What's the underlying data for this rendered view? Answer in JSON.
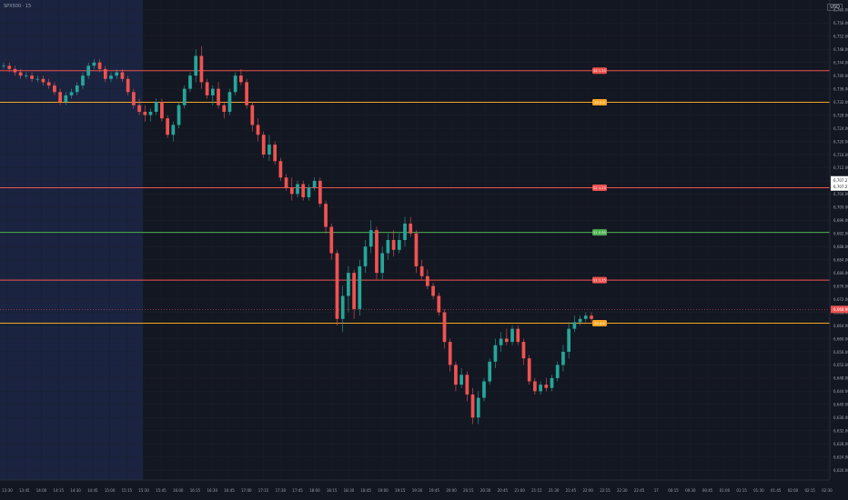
{
  "header": {
    "symbol": "SPX500 · 15",
    "currency": "USD"
  },
  "colors": {
    "background": "#131722",
    "session_shade": "#1a2340",
    "up": "#26a69a",
    "down": "#ef5350",
    "red_level": "#ef5350",
    "orange_level": "#f5a623",
    "green_level": "#4caf50"
  },
  "chart_data": {
    "type": "candlestick",
    "price_axis": {
      "ylim": [
        6617,
        6763
      ],
      "ticks": [
        "6,760.00",
        "6,756.00",
        "6,752.00",
        "6,748.00",
        "6,744.00",
        "6,740.00",
        "6,736.00",
        "6,732.00",
        "6,728.00",
        "6,724.00",
        "6,720.00",
        "6,716.00",
        "6,712.00",
        "6,708.00",
        "6,704.00",
        "6,700.00",
        "6,696.00",
        "6,692.00",
        "6,688.00",
        "6,684.00",
        "6,680.00",
        "6,676.00",
        "6,672.00",
        "6,668.00",
        "6,664.00",
        "6,660.00",
        "6,656.00",
        "6,652.00",
        "6,648.00",
        "6,644.00",
        "6,640.00",
        "6,636.00",
        "6,632.00",
        "6,628.00",
        "6,624.00",
        "6,620.00"
      ],
      "current_price_labels": [
        "6,707.21",
        "6,707.21"
      ],
      "last_price_label": "6,668.90"
    },
    "time_axis": {
      "ticks": [
        "13:30",
        "13:45",
        "14:00",
        "14:15",
        "14:30",
        "14:45",
        "15:00",
        "15:15",
        "15:30",
        "15:45",
        "16:00",
        "16:15",
        "16:30",
        "16:45",
        "17:00",
        "17:15",
        "17:30",
        "17:45",
        "18:00",
        "18:15",
        "18:30",
        "18:45",
        "19:00",
        "19:15",
        "19:30",
        "19:45",
        "20:00",
        "20:15",
        "20:30",
        "20:45",
        "21:00",
        "21:15",
        "21:30",
        "21:45",
        "22:00",
        "22:15",
        "22:30",
        "22:45",
        "17",
        "00:15",
        "00:30",
        "00:45",
        "01:00",
        "01:15",
        "01:30",
        "01:45",
        "02:00",
        "02:15",
        "02:30"
      ]
    },
    "levels": [
      {
        "price": 6741.5,
        "color": "red",
        "label": "S4 1.25"
      },
      {
        "price": 6731.9,
        "color": "orange",
        "label": "S3 0.6"
      },
      {
        "price": 6705.9,
        "color": "red",
        "label": "S2 1.25"
      },
      {
        "price": 6692.3,
        "color": "green",
        "label": "S1 0.95"
      },
      {
        "price": 6677.8,
        "color": "red",
        "label": "S1 1.25"
      },
      {
        "price": 6664.7,
        "color": "orange",
        "label": "S0 0.6"
      }
    ],
    "candles": [
      {
        "o": 6743,
        "h": 6744,
        "l": 6742,
        "c": 6743
      },
      {
        "o": 6743,
        "h": 6744,
        "l": 6741,
        "c": 6742
      },
      {
        "o": 6742,
        "h": 6743,
        "l": 6740,
        "c": 6741
      },
      {
        "o": 6741,
        "h": 6742,
        "l": 6739,
        "c": 6740
      },
      {
        "o": 6740,
        "h": 6741,
        "l": 6739,
        "c": 6740
      },
      {
        "o": 6740,
        "h": 6741,
        "l": 6738,
        "c": 6739
      },
      {
        "o": 6739,
        "h": 6740,
        "l": 6738,
        "c": 6739
      },
      {
        "o": 6739,
        "h": 6740,
        "l": 6737,
        "c": 6738
      },
      {
        "o": 6738,
        "h": 6739,
        "l": 6736,
        "c": 6737
      },
      {
        "o": 6737,
        "h": 6738,
        "l": 6734,
        "c": 6735
      },
      {
        "o": 6735,
        "h": 6736,
        "l": 6731,
        "c": 6732
      },
      {
        "o": 6732,
        "h": 6735,
        "l": 6731,
        "c": 6734
      },
      {
        "o": 6734,
        "h": 6736,
        "l": 6733,
        "c": 6735
      },
      {
        "o": 6735,
        "h": 6738,
        "l": 6734,
        "c": 6737
      },
      {
        "o": 6737,
        "h": 6741,
        "l": 6736,
        "c": 6740
      },
      {
        "o": 6740,
        "h": 6744,
        "l": 6739,
        "c": 6743
      },
      {
        "o": 6743,
        "h": 6745,
        "l": 6742,
        "c": 6744
      },
      {
        "o": 6744,
        "h": 6745,
        "l": 6741,
        "c": 6742
      },
      {
        "o": 6742,
        "h": 6743,
        "l": 6738,
        "c": 6739
      },
      {
        "o": 6739,
        "h": 6741,
        "l": 6738,
        "c": 6740
      },
      {
        "o": 6740,
        "h": 6742,
        "l": 6739,
        "c": 6741
      },
      {
        "o": 6741,
        "h": 6742,
        "l": 6738,
        "c": 6739
      },
      {
        "o": 6739,
        "h": 6740,
        "l": 6734,
        "c": 6735
      },
      {
        "o": 6735,
        "h": 6736,
        "l": 6730,
        "c": 6731
      },
      {
        "o": 6731,
        "h": 6733,
        "l": 6728,
        "c": 6729
      },
      {
        "o": 6729,
        "h": 6731,
        "l": 6726,
        "c": 6728
      },
      {
        "o": 6728,
        "h": 6730,
        "l": 6726,
        "c": 6729
      },
      {
        "o": 6729,
        "h": 6733,
        "l": 6728,
        "c": 6732
      },
      {
        "o": 6732,
        "h": 6733,
        "l": 6726,
        "c": 6727
      },
      {
        "o": 6727,
        "h": 6728,
        "l": 6721,
        "c": 6722
      },
      {
        "o": 6722,
        "h": 6726,
        "l": 6720,
        "c": 6725
      },
      {
        "o": 6725,
        "h": 6732,
        "l": 6724,
        "c": 6731
      },
      {
        "o": 6731,
        "h": 6737,
        "l": 6730,
        "c": 6736
      },
      {
        "o": 6736,
        "h": 6741,
        "l": 6735,
        "c": 6740
      },
      {
        "o": 6740,
        "h": 6748,
        "l": 6738,
        "c": 6746
      },
      {
        "o": 6746,
        "h": 6749,
        "l": 6736,
        "c": 6738
      },
      {
        "o": 6738,
        "h": 6739,
        "l": 6733,
        "c": 6734
      },
      {
        "o": 6734,
        "h": 6737,
        "l": 6731,
        "c": 6736
      },
      {
        "o": 6736,
        "h": 6738,
        "l": 6730,
        "c": 6731
      },
      {
        "o": 6731,
        "h": 6732,
        "l": 6727,
        "c": 6729
      },
      {
        "o": 6729,
        "h": 6736,
        "l": 6728,
        "c": 6735
      },
      {
        "o": 6735,
        "h": 6741,
        "l": 6734,
        "c": 6740
      },
      {
        "o": 6740,
        "h": 6742,
        "l": 6737,
        "c": 6738
      },
      {
        "o": 6738,
        "h": 6739,
        "l": 6730,
        "c": 6731
      },
      {
        "o": 6731,
        "h": 6732,
        "l": 6723,
        "c": 6725
      },
      {
        "o": 6725,
        "h": 6727,
        "l": 6720,
        "c": 6722
      },
      {
        "o": 6722,
        "h": 6723,
        "l": 6715,
        "c": 6716
      },
      {
        "o": 6716,
        "h": 6722,
        "l": 6714,
        "c": 6719
      },
      {
        "o": 6719,
        "h": 6720,
        "l": 6713,
        "c": 6714
      },
      {
        "o": 6714,
        "h": 6715,
        "l": 6708,
        "c": 6709
      },
      {
        "o": 6709,
        "h": 6710,
        "l": 6705,
        "c": 6706
      },
      {
        "o": 6706,
        "h": 6709,
        "l": 6702,
        "c": 6704
      },
      {
        "o": 6704,
        "h": 6708,
        "l": 6703,
        "c": 6707
      },
      {
        "o": 6707,
        "h": 6708,
        "l": 6702,
        "c": 6703
      },
      {
        "o": 6703,
        "h": 6707,
        "l": 6702,
        "c": 6706
      },
      {
        "o": 6706,
        "h": 6709,
        "l": 6705,
        "c": 6708
      },
      {
        "o": 6708,
        "h": 6709,
        "l": 6700,
        "c": 6701
      },
      {
        "o": 6701,
        "h": 6702,
        "l": 6692,
        "c": 6694
      },
      {
        "o": 6694,
        "h": 6695,
        "l": 6684,
        "c": 6686
      },
      {
        "o": 6686,
        "h": 6687,
        "l": 6664,
        "c": 6666
      },
      {
        "o": 6666,
        "h": 6676,
        "l": 6662,
        "c": 6673
      },
      {
        "o": 6673,
        "h": 6682,
        "l": 6668,
        "c": 6680
      },
      {
        "o": 6680,
        "h": 6681,
        "l": 6666,
        "c": 6669
      },
      {
        "o": 6669,
        "h": 6684,
        "l": 6667,
        "c": 6682
      },
      {
        "o": 6682,
        "h": 6690,
        "l": 6680,
        "c": 6688
      },
      {
        "o": 6688,
        "h": 6696,
        "l": 6686,
        "c": 6693
      },
      {
        "o": 6693,
        "h": 6694,
        "l": 6678,
        "c": 6680
      },
      {
        "o": 6680,
        "h": 6688,
        "l": 6678,
        "c": 6686
      },
      {
        "o": 6686,
        "h": 6692,
        "l": 6684,
        "c": 6690
      },
      {
        "o": 6690,
        "h": 6693,
        "l": 6685,
        "c": 6687
      },
      {
        "o": 6687,
        "h": 6692,
        "l": 6686,
        "c": 6690
      },
      {
        "o": 6690,
        "h": 6697,
        "l": 6688,
        "c": 6695
      },
      {
        "o": 6695,
        "h": 6697,
        "l": 6691,
        "c": 6692
      },
      {
        "o": 6692,
        "h": 6693,
        "l": 6680,
        "c": 6682
      },
      {
        "o": 6682,
        "h": 6684,
        "l": 6678,
        "c": 6679
      },
      {
        "o": 6679,
        "h": 6681,
        "l": 6675,
        "c": 6676
      },
      {
        "o": 6676,
        "h": 6677,
        "l": 6672,
        "c": 6673
      },
      {
        "o": 6673,
        "h": 6674,
        "l": 6667,
        "c": 6668
      },
      {
        "o": 6668,
        "h": 6669,
        "l": 6657,
        "c": 6659
      },
      {
        "o": 6659,
        "h": 6660,
        "l": 6650,
        "c": 6652
      },
      {
        "o": 6652,
        "h": 6653,
        "l": 6644,
        "c": 6646
      },
      {
        "o": 6646,
        "h": 6651,
        "l": 6645,
        "c": 6649
      },
      {
        "o": 6649,
        "h": 6650,
        "l": 6641,
        "c": 6643
      },
      {
        "o": 6643,
        "h": 6645,
        "l": 6634,
        "c": 6636
      },
      {
        "o": 6636,
        "h": 6644,
        "l": 6634,
        "c": 6642
      },
      {
        "o": 6642,
        "h": 6648,
        "l": 6641,
        "c": 6647
      },
      {
        "o": 6647,
        "h": 6654,
        "l": 6646,
        "c": 6653
      },
      {
        "o": 6653,
        "h": 6660,
        "l": 6651,
        "c": 6658
      },
      {
        "o": 6658,
        "h": 6662,
        "l": 6656,
        "c": 6660
      },
      {
        "o": 6660,
        "h": 6663,
        "l": 6658,
        "c": 6659
      },
      {
        "o": 6659,
        "h": 6664,
        "l": 6658,
        "c": 6663
      },
      {
        "o": 6663,
        "h": 6664,
        "l": 6658,
        "c": 6659
      },
      {
        "o": 6659,
        "h": 6660,
        "l": 6652,
        "c": 6654
      },
      {
        "o": 6654,
        "h": 6655,
        "l": 6646,
        "c": 6647
      },
      {
        "o": 6647,
        "h": 6648,
        "l": 6643,
        "c": 6644
      },
      {
        "o": 6644,
        "h": 6647,
        "l": 6643,
        "c": 6646
      },
      {
        "o": 6646,
        "h": 6648,
        "l": 6644,
        "c": 6645
      },
      {
        "o": 6645,
        "h": 6649,
        "l": 6644,
        "c": 6648
      },
      {
        "o": 6648,
        "h": 6653,
        "l": 6647,
        "c": 6652
      },
      {
        "o": 6652,
        "h": 6658,
        "l": 6650,
        "c": 6656
      },
      {
        "o": 6656,
        "h": 6665,
        "l": 6654,
        "c": 6663
      },
      {
        "o": 6663,
        "h": 6667,
        "l": 6662,
        "c": 6665
      },
      {
        "o": 6665,
        "h": 6667,
        "l": 6664,
        "c": 6666
      },
      {
        "o": 6666,
        "h": 6668,
        "l": 6665,
        "c": 6667
      },
      {
        "o": 6667,
        "h": 6668,
        "l": 6665,
        "c": 6666
      }
    ]
  }
}
